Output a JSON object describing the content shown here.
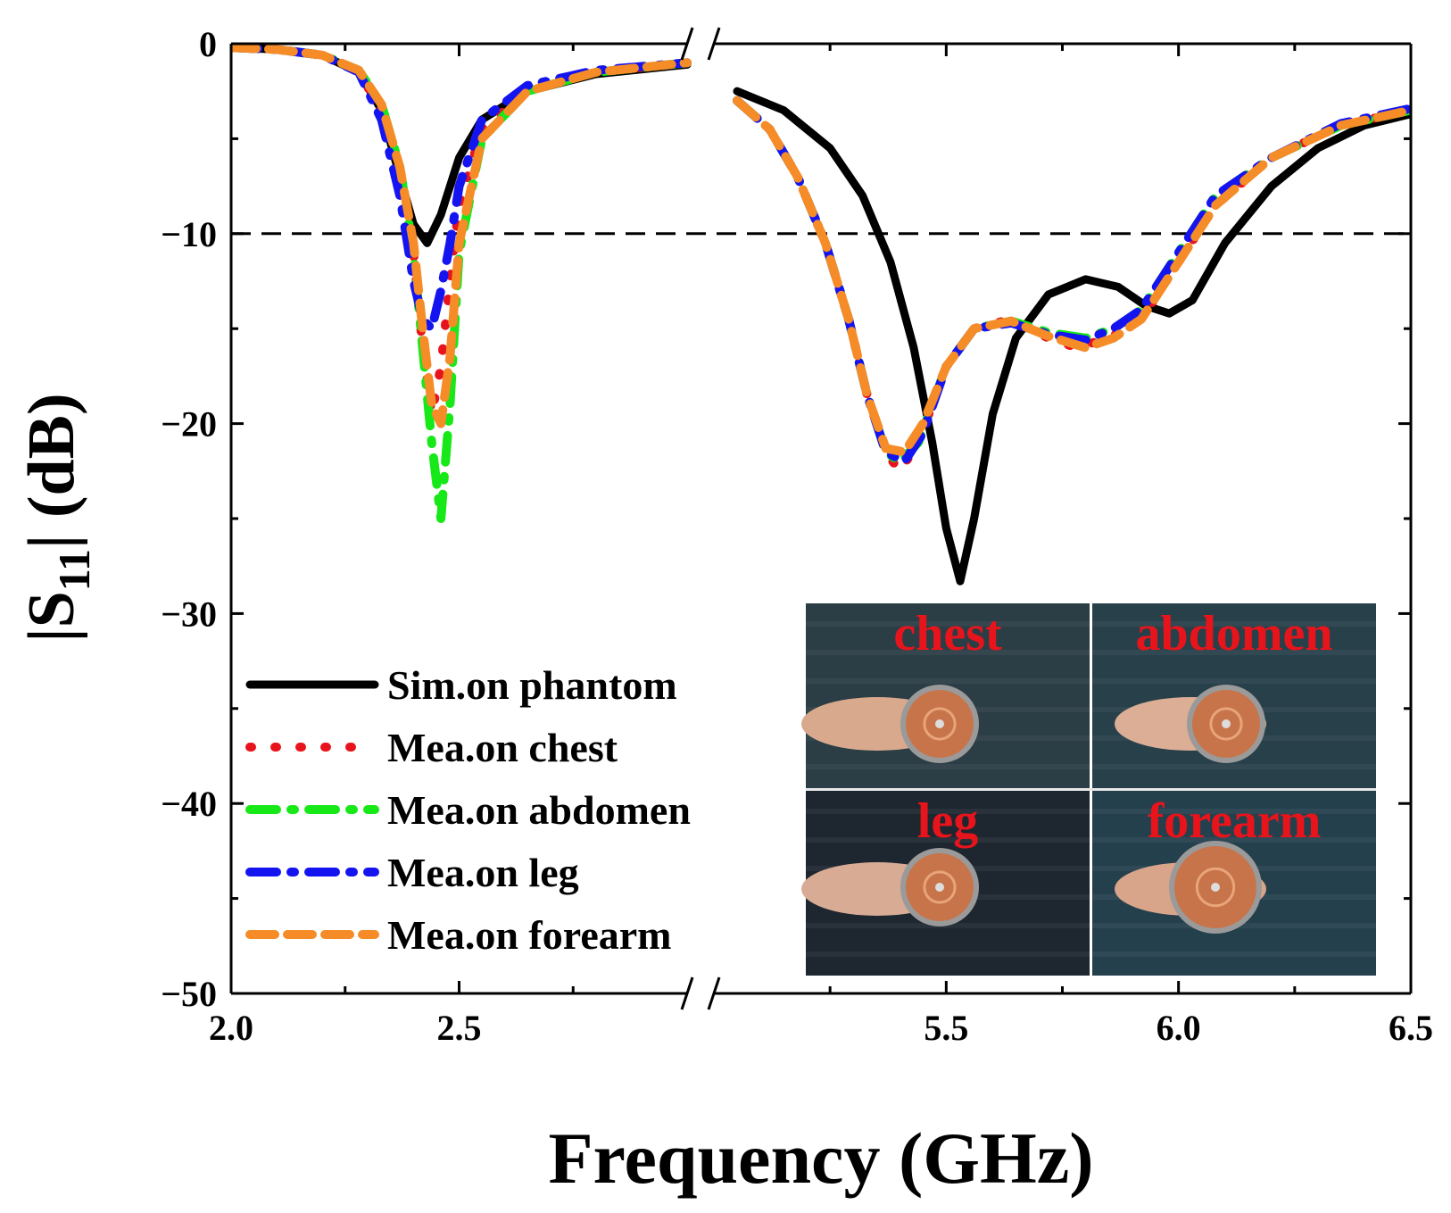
{
  "chart_data": {
    "type": "line",
    "title": "",
    "xlabel": "Frequency (GHz)",
    "ylabel_main": "|S",
    "ylabel_sub": "11",
    "ylabel_tail": "| (dB)",
    "ylim": [
      -50,
      0
    ],
    "y_ticks": [
      0,
      -10,
      -20,
      -30,
      -40,
      -50
    ],
    "y_tick_labels": [
      "0",
      "−10",
      "−20",
      "−30",
      "−40",
      "−50"
    ],
    "y_minor_ticks": [
      -5,
      -15,
      -25,
      -35,
      -45
    ],
    "x_segments": [
      {
        "range": [
          2.0,
          3.0
        ],
        "ticks": [
          2.0,
          2.5
        ],
        "tick_labels": [
          "2.0",
          "2.5"
        ],
        "minor": [
          2.25,
          2.75
        ]
      },
      {
        "range": [
          5.0,
          6.5
        ],
        "ticks": [
          5.5,
          6.0,
          6.5
        ],
        "tick_labels": [
          "5.5",
          "6.0",
          "6.5"
        ],
        "minor": [
          5.25,
          5.75,
          6.25
        ]
      }
    ],
    "axis_break_symbol": "//",
    "reference_line": {
      "y": -10,
      "style": "dashed"
    },
    "series": [
      {
        "name": "Sim.on phantom",
        "color": "#000000",
        "dash": "solid",
        "segments": [
          [
            [
              2.0,
              -0.2
            ],
            [
              2.1,
              -0.3
            ],
            [
              2.2,
              -0.6
            ],
            [
              2.28,
              -1.5
            ],
            [
              2.33,
              -3.5
            ],
            [
              2.37,
              -7
            ],
            [
              2.4,
              -9.5
            ],
            [
              2.43,
              -10.5
            ],
            [
              2.46,
              -9.0
            ],
            [
              2.5,
              -6.0
            ],
            [
              2.55,
              -4.0
            ],
            [
              2.65,
              -2.5
            ],
            [
              2.8,
              -1.6
            ],
            [
              3.0,
              -1.1
            ]
          ],
          [
            [
              5.05,
              -2.5
            ],
            [
              5.15,
              -3.5
            ],
            [
              5.25,
              -5.5
            ],
            [
              5.32,
              -8.0
            ],
            [
              5.38,
              -11.5
            ],
            [
              5.43,
              -16.0
            ],
            [
              5.47,
              -21.0
            ],
            [
              5.5,
              -25.5
            ],
            [
              5.53,
              -28.3
            ],
            [
              5.56,
              -25.0
            ],
            [
              5.6,
              -19.5
            ],
            [
              5.65,
              -15.5
            ],
            [
              5.72,
              -13.2
            ],
            [
              5.8,
              -12.4
            ],
            [
              5.87,
              -12.8
            ],
            [
              5.93,
              -13.8
            ],
            [
              5.98,
              -14.2
            ],
            [
              6.03,
              -13.5
            ],
            [
              6.1,
              -10.5
            ],
            [
              6.2,
              -7.5
            ],
            [
              6.3,
              -5.5
            ],
            [
              6.4,
              -4.3
            ],
            [
              6.5,
              -3.7
            ]
          ]
        ]
      },
      {
        "name": "Mea.on chest",
        "color": "#e8141c",
        "dash": "dot",
        "segments": [
          [
            [
              2.0,
              -0.2
            ],
            [
              2.1,
              -0.3
            ],
            [
              2.2,
              -0.6
            ],
            [
              2.28,
              -1.5
            ],
            [
              2.33,
              -3.5
            ],
            [
              2.37,
              -6.5
            ],
            [
              2.4,
              -11
            ],
            [
              2.42,
              -16
            ],
            [
              2.44,
              -19.5
            ],
            [
              2.46,
              -17
            ],
            [
              2.48,
              -12.5
            ],
            [
              2.5,
              -8.5
            ],
            [
              2.55,
              -4.5
            ],
            [
              2.65,
              -2.5
            ],
            [
              2.8,
              -1.5
            ],
            [
              3.0,
              -1.0
            ]
          ],
          [
            [
              5.05,
              -3.0
            ],
            [
              5.12,
              -4.5
            ],
            [
              5.18,
              -7.0
            ],
            [
              5.24,
              -10.5
            ],
            [
              5.29,
              -14.5
            ],
            [
              5.33,
              -18.5
            ],
            [
              5.37,
              -21.5
            ],
            [
              5.4,
              -22.5
            ],
            [
              5.44,
              -21.0
            ],
            [
              5.5,
              -17.0
            ],
            [
              5.56,
              -15.0
            ],
            [
              5.64,
              -14.5
            ],
            [
              5.72,
              -15.5
            ],
            [
              5.78,
              -16.0
            ],
            [
              5.85,
              -15.5
            ],
            [
              5.92,
              -14.5
            ],
            [
              6.0,
              -11.5
            ],
            [
              6.08,
              -8.5
            ],
            [
              6.2,
              -6.0
            ],
            [
              6.35,
              -4.3
            ],
            [
              6.5,
              -3.5
            ]
          ]
        ]
      },
      {
        "name": "Mea.on abdomen",
        "color": "#17e817",
        "dash": "dashdot",
        "segments": [
          [
            [
              2.0,
              -0.2
            ],
            [
              2.1,
              -0.3
            ],
            [
              2.2,
              -0.6
            ],
            [
              2.28,
              -1.4
            ],
            [
              2.33,
              -3.2
            ],
            [
              2.37,
              -6.5
            ],
            [
              2.4,
              -11
            ],
            [
              2.42,
              -16
            ],
            [
              2.44,
              -21
            ],
            [
              2.46,
              -25
            ],
            [
              2.48,
              -19
            ],
            [
              2.5,
              -11
            ],
            [
              2.55,
              -5.0
            ],
            [
              2.65,
              -2.5
            ],
            [
              2.8,
              -1.5
            ],
            [
              3.0,
              -1.0
            ]
          ],
          [
            [
              5.05,
              -3.0
            ],
            [
              5.12,
              -4.5
            ],
            [
              5.18,
              -7.0
            ],
            [
              5.24,
              -10.5
            ],
            [
              5.29,
              -14.5
            ],
            [
              5.33,
              -18.5
            ],
            [
              5.37,
              -21.5
            ],
            [
              5.4,
              -22.0
            ],
            [
              5.44,
              -21.0
            ],
            [
              5.5,
              -17.0
            ],
            [
              5.56,
              -15.0
            ],
            [
              5.64,
              -14.6
            ],
            [
              5.72,
              -15.2
            ],
            [
              5.8,
              -15.5
            ],
            [
              5.86,
              -15.0
            ],
            [
              5.92,
              -14.0
            ],
            [
              6.0,
              -11.0
            ],
            [
              6.08,
              -8.0
            ],
            [
              6.2,
              -6.0
            ],
            [
              6.35,
              -4.3
            ],
            [
              6.5,
              -3.5
            ]
          ]
        ]
      },
      {
        "name": "Mea.on leg",
        "color": "#1414f0",
        "dash": "dashdot",
        "segments": [
          [
            [
              2.0,
              -0.2
            ],
            [
              2.1,
              -0.3
            ],
            [
              2.2,
              -0.6
            ],
            [
              2.28,
              -1.5
            ],
            [
              2.33,
              -4.0
            ],
            [
              2.37,
              -8.0
            ],
            [
              2.4,
              -12.5
            ],
            [
              2.42,
              -14.5
            ],
            [
              2.44,
              -15.0
            ],
            [
              2.46,
              -13.0
            ],
            [
              2.48,
              -10.5
            ],
            [
              2.5,
              -7.5
            ],
            [
              2.55,
              -4.0
            ],
            [
              2.65,
              -2.2
            ],
            [
              2.8,
              -1.4
            ],
            [
              3.0,
              -1.0
            ]
          ],
          [
            [
              5.05,
              -3.0
            ],
            [
              5.12,
              -4.5
            ],
            [
              5.18,
              -7.0
            ],
            [
              5.24,
              -10.5
            ],
            [
              5.29,
              -14.5
            ],
            [
              5.33,
              -18.5
            ],
            [
              5.37,
              -21.5
            ],
            [
              5.41,
              -22.0
            ],
            [
              5.45,
              -20.5
            ],
            [
              5.5,
              -17.0
            ],
            [
              5.56,
              -15.0
            ],
            [
              5.64,
              -14.7
            ],
            [
              5.72,
              -15.3
            ],
            [
              5.8,
              -15.6
            ],
            [
              5.86,
              -15.0
            ],
            [
              5.92,
              -14.0
            ],
            [
              6.0,
              -11.0
            ],
            [
              6.08,
              -8.0
            ],
            [
              6.2,
              -6.0
            ],
            [
              6.35,
              -4.2
            ],
            [
              6.5,
              -3.4
            ]
          ]
        ]
      },
      {
        "name": "Mea.on forearm",
        "color": "#f58c28",
        "dash": "dash",
        "segments": [
          [
            [
              2.0,
              -0.2
            ],
            [
              2.1,
              -0.3
            ],
            [
              2.2,
              -0.6
            ],
            [
              2.28,
              -1.4
            ],
            [
              2.33,
              -3.2
            ],
            [
              2.37,
              -6.5
            ],
            [
              2.4,
              -10.5
            ],
            [
              2.42,
              -15.0
            ],
            [
              2.44,
              -19.0
            ],
            [
              2.46,
              -20.0
            ],
            [
              2.48,
              -16.5
            ],
            [
              2.5,
              -10.5
            ],
            [
              2.55,
              -5.0
            ],
            [
              2.65,
              -2.5
            ],
            [
              2.8,
              -1.5
            ],
            [
              3.0,
              -1.0
            ]
          ],
          [
            [
              5.05,
              -3.0
            ],
            [
              5.12,
              -4.5
            ],
            [
              5.18,
              -7.0
            ],
            [
              5.24,
              -10.5
            ],
            [
              5.29,
              -14.5
            ],
            [
              5.33,
              -18.5
            ],
            [
              5.37,
              -21.3
            ],
            [
              5.41,
              -21.5
            ],
            [
              5.45,
              -20.0
            ],
            [
              5.5,
              -17.0
            ],
            [
              5.56,
              -15.0
            ],
            [
              5.64,
              -14.6
            ],
            [
              5.72,
              -15.4
            ],
            [
              5.8,
              -16.0
            ],
            [
              5.86,
              -15.5
            ],
            [
              5.92,
              -14.5
            ],
            [
              6.0,
              -11.5
            ],
            [
              6.08,
              -8.5
            ],
            [
              6.2,
              -6.0
            ],
            [
              6.35,
              -4.3
            ],
            [
              6.5,
              -3.5
            ]
          ]
        ]
      }
    ],
    "legend_placement": "bottom-left",
    "inset_photos": [
      {
        "label": "chest",
        "skin": "#d9a98e",
        "bg": "#2b3d45"
      },
      {
        "label": "abdomen",
        "skin": "#dcae95",
        "bg": "#27404a"
      },
      {
        "label": "leg",
        "skin": "#d8ab95",
        "bg": "#1e2630"
      },
      {
        "label": "forearm",
        "skin": "#d9a58a",
        "bg": "#25404d"
      }
    ]
  }
}
